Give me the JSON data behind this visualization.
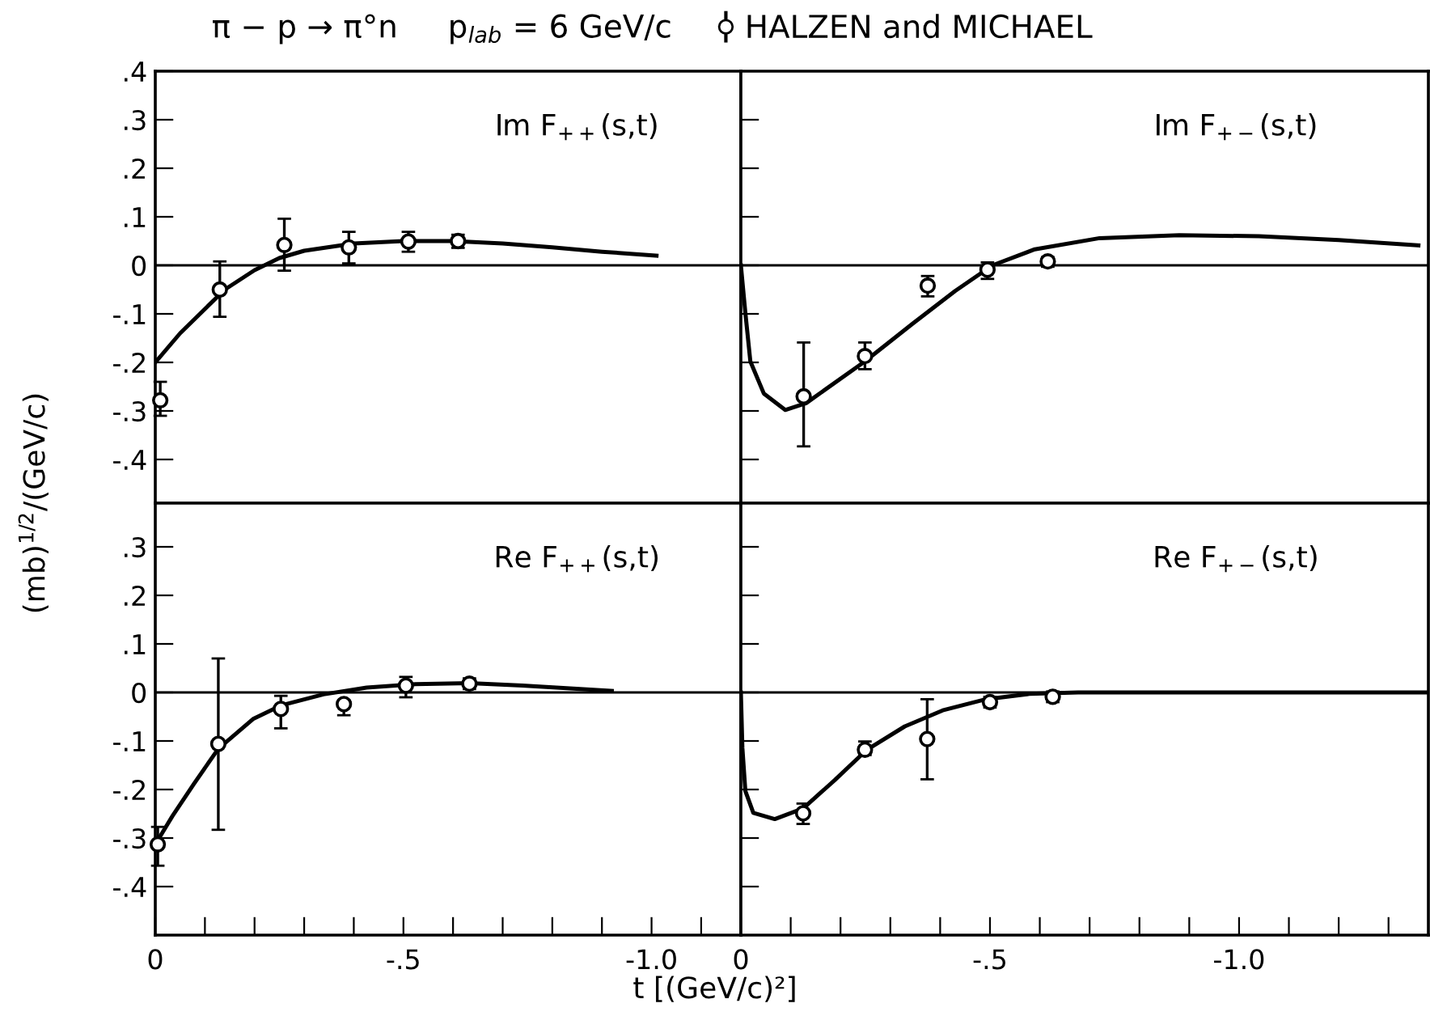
{
  "chart_data": [
    {
      "type": "line",
      "title": "π − p → π°n     p$_{lab}$ = 6 GeV/c",
      "ylabel": "(mb)$^{1/2}$/(GeV/c)",
      "annotations": [
        "Im F$_{++}$(s,t)"
      ],
      "xlim": [
        0,
        -1.18
      ],
      "ylim": [
        -0.49,
        0.4
      ],
      "yticks": [
        {
          "value": 0.4,
          "label": ".4"
        },
        {
          "value": 0.3,
          "label": ".3"
        },
        {
          "value": 0.2,
          "label": ".2"
        },
        {
          "value": 0.1,
          "label": ".1"
        },
        {
          "value": 0,
          "label": "0"
        },
        {
          "value": -0.1,
          "label": "-.1"
        },
        {
          "value": -0.2,
          "label": "-.2"
        },
        {
          "value": -0.3,
          "label": "-.3"
        },
        {
          "value": -0.4,
          "label": "-.4"
        }
      ],
      "tick_labels": "y",
      "grid": false,
      "legend": "top",
      "ref_lines": [
        {
          "axis": "y",
          "value": 0,
          "color": "#000000"
        }
      ],
      "series": [
        {
          "type": "line",
          "color": "#000000",
          "marker": "none",
          "x": [
            0,
            -0.05,
            -0.1,
            -0.14,
            -0.2,
            -0.25,
            -0.3,
            -0.4,
            -0.5,
            -0.6,
            -0.7,
            -0.8,
            -0.9,
            -1.01
          ],
          "values": [
            -0.2,
            -0.14,
            -0.09,
            -0.05,
            -0.01,
            0.015,
            0.03,
            0.045,
            0.05,
            0.05,
            0.045,
            0.037,
            0.028,
            0.02
          ]
        },
        {
          "type": "scatter",
          "name": "HALZEN and MICHAEL",
          "color": "#000000",
          "marker": "circle",
          "x": [
            -0.01,
            -0.13,
            -0.26,
            -0.39,
            -0.51,
            -0.61
          ],
          "values": [
            -0.278,
            -0.05,
            0.042,
            0.037,
            0.049,
            0.05
          ],
          "errors": [
            [
              -0.31,
              -0.24
            ],
            [
              -0.106,
              0.008
            ],
            [
              -0.011,
              0.096
            ],
            [
              0.004,
              0.069
            ],
            [
              0.028,
              0.069
            ],
            [
              0.036,
              0.063
            ]
          ]
        }
      ]
    },
    {
      "type": "line",
      "annotations": [
        "Im F$_{+−}$(s,t)"
      ],
      "xlim": [
        0,
        -1.38
      ],
      "ylim": [
        -0.49,
        0.4
      ],
      "yticks": [
        {
          "value": 0.3,
          "label": null
        },
        {
          "value": 0.2,
          "label": null
        },
        {
          "value": 0.1,
          "label": null
        },
        {
          "value": 0,
          "label": null
        },
        {
          "value": -0.1,
          "label": null
        },
        {
          "value": -0.2,
          "label": null
        },
        {
          "value": -0.3,
          "label": null
        },
        {
          "value": -0.4,
          "label": null
        }
      ],
      "tick_labels": false,
      "grid": false,
      "ref_lines": [
        {
          "axis": "y",
          "value": 0,
          "color": "#000000"
        }
      ],
      "series": [
        {
          "type": "line",
          "color": "#000000",
          "marker": "none",
          "x": [
            0,
            -0.009,
            -0.019,
            -0.046,
            -0.089,
            -0.131,
            -0.249,
            -0.345,
            -0.43,
            -0.505,
            -0.59,
            -0.72,
            -0.88,
            -1.04,
            -1.2,
            -1.36
          ],
          "values": [
            0,
            -0.098,
            -0.198,
            -0.264,
            -0.298,
            -0.284,
            -0.198,
            -0.12,
            -0.053,
            0,
            0.033,
            0.056,
            0.062,
            0.06,
            0.052,
            0.041
          ]
        },
        {
          "type": "scatter",
          "color": "#000000",
          "marker": "circle",
          "x": [
            -0.126,
            -0.249,
            -0.375,
            -0.495,
            -0.616
          ],
          "values": [
            -0.27,
            -0.187,
            -0.042,
            -0.009,
            0.008
          ],
          "errors": [
            [
              -0.373,
              -0.159
            ],
            [
              -0.214,
              -0.159
            ],
            [
              -0.064,
              -0.022
            ],
            [
              -0.028,
              0.006
            ],
            [
              -0.003,
              0.017
            ]
          ]
        }
      ]
    },
    {
      "type": "line",
      "annotations": [
        "Re F$_{++}$(s,t)"
      ],
      "xlim": [
        0,
        -1.18
      ],
      "ylim": [
        -0.5,
        0.39
      ],
      "xticks": [
        0,
        {
          "value": -0.1,
          "label": null
        },
        {
          "value": -0.2,
          "label": null
        },
        {
          "value": -0.3,
          "label": null
        },
        {
          "value": -0.4,
          "label": null
        },
        {
          "value": -0.5,
          "label": "-.5"
        },
        {
          "value": -0.6,
          "label": null
        },
        {
          "value": -0.7,
          "label": null
        },
        {
          "value": -0.8,
          "label": null
        },
        {
          "value": -0.9,
          "label": null
        },
        {
          "value": -1.0,
          "label": "-1.0"
        },
        {
          "value": -1.1,
          "label": null
        }
      ],
      "yticks": [
        {
          "value": 0.3,
          "label": ".3"
        },
        {
          "value": 0.2,
          "label": ".2"
        },
        {
          "value": 0.1,
          "label": ".1"
        },
        {
          "value": 0,
          "label": "0"
        },
        {
          "value": -0.1,
          "label": "-.1"
        },
        {
          "value": -0.2,
          "label": "-.2"
        },
        {
          "value": -0.3,
          "label": "-.3"
        },
        {
          "value": -0.4,
          "label": "-.4"
        }
      ],
      "grid": false,
      "ref_lines": [
        {
          "axis": "y",
          "value": 0,
          "color": "#000000"
        }
      ],
      "series": [
        {
          "type": "line",
          "color": "#000000",
          "marker": "none",
          "x": [
            0,
            -0.035,
            -0.078,
            -0.127,
            -0.198,
            -0.253,
            -0.339,
            -0.426,
            -0.524,
            -0.633,
            -0.74,
            -0.92
          ],
          "values": [
            -0.313,
            -0.254,
            -0.188,
            -0.116,
            -0.054,
            -0.027,
            -0.004,
            0.01,
            0.017,
            0.019,
            0.014,
            0.003
          ]
        },
        {
          "type": "scatter",
          "color": "#000000",
          "marker": "circle",
          "x": [
            -0.005,
            -0.127,
            -0.253,
            -0.38,
            -0.505,
            -0.633
          ],
          "values": [
            -0.313,
            -0.106,
            -0.034,
            -0.024,
            0.014,
            0.018
          ],
          "errors": [
            [
              -0.357,
              -0.277
            ],
            [
              -0.283,
              0.07
            ],
            [
              -0.074,
              -0.007
            ],
            [
              -0.047,
              -0.016
            ],
            [
              -0.01,
              0.032
            ],
            [
              0.007,
              0.029
            ]
          ]
        }
      ]
    },
    {
      "type": "line",
      "xlabel": "t [(GeV/c)²]",
      "annotations": [
        "Re F$_{+−}$(s,t)"
      ],
      "xlim": [
        0,
        -1.38
      ],
      "ylim": [
        -0.5,
        0.39
      ],
      "xticks": [
        0,
        {
          "value": -0.1,
          "label": null
        },
        {
          "value": -0.2,
          "label": null
        },
        {
          "value": -0.3,
          "label": null
        },
        {
          "value": -0.4,
          "label": null
        },
        {
          "value": -0.5,
          "label": "-.5"
        },
        {
          "value": -0.6,
          "label": null
        },
        {
          "value": -0.7,
          "label": null
        },
        {
          "value": -0.8,
          "label": null
        },
        {
          "value": -0.9,
          "label": null
        },
        {
          "value": -1.0,
          "label": "-1.0"
        },
        {
          "value": -1.1,
          "label": null
        },
        {
          "value": -1.2,
          "label": null
        },
        {
          "value": -1.3,
          "label": null
        }
      ],
      "yticks": [
        {
          "value": 0.3,
          "label": null
        },
        {
          "value": 0.2,
          "label": null
        },
        {
          "value": 0.1,
          "label": null
        },
        {
          "value": 0,
          "label": null
        },
        {
          "value": -0.1,
          "label": null
        },
        {
          "value": -0.2,
          "label": null
        },
        {
          "value": -0.3,
          "label": null
        },
        {
          "value": -0.4,
          "label": null
        }
      ],
      "tick_labels": "x",
      "grid": false,
      "ref_lines": [
        {
          "axis": "y",
          "value": 0,
          "color": "#000000"
        }
      ],
      "series": [
        {
          "type": "line",
          "color": "#000000",
          "marker": "none",
          "x": [
            0,
            -0.003,
            -0.009,
            -0.025,
            -0.068,
            -0.125,
            -0.188,
            -0.253,
            -0.329,
            -0.405,
            -0.492,
            -0.579,
            -0.677,
            -1.38
          ],
          "values": [
            0,
            -0.114,
            -0.203,
            -0.248,
            -0.261,
            -0.239,
            -0.181,
            -0.118,
            -0.07,
            -0.037,
            -0.014,
            -0.003,
            0,
            0
          ]
        },
        {
          "type": "scatter",
          "color": "#000000",
          "marker": "circle",
          "x": [
            -0.125,
            -0.249,
            -0.374,
            -0.5,
            -0.626
          ],
          "values": [
            -0.249,
            -0.118,
            -0.096,
            -0.02,
            -0.009
          ],
          "errors": [
            [
              -0.271,
              -0.229
            ],
            [
              -0.129,
              -0.101
            ],
            [
              -0.179,
              -0.014
            ],
            [
              -0.031,
              -0.009
            ],
            [
              -0.02,
              0.002
            ]
          ]
        }
      ]
    }
  ]
}
